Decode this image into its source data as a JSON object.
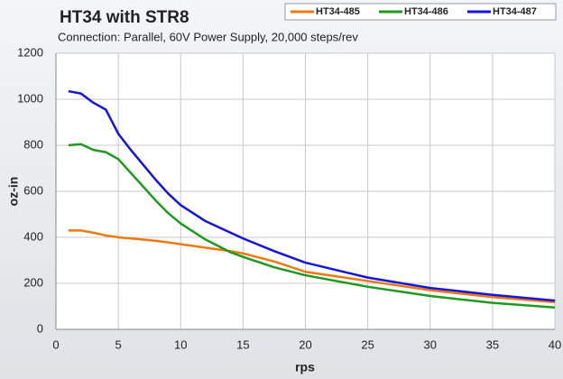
{
  "chart_data": {
    "type": "line",
    "title": "HT34 with STR8",
    "subtitle": "Connection: Parallel, 60V Power Supply, 20,000 steps/rev",
    "x_label": "rps",
    "y_label": "oz-in",
    "x": [
      1,
      2,
      3,
      4,
      5,
      6,
      7,
      8,
      9,
      10,
      12,
      14,
      15,
      17.5,
      20,
      25,
      30,
      35,
      40
    ],
    "series": [
      {
        "name": "HT34-485",
        "color": "#f07810",
        "values": [
          430,
          430,
          420,
          408,
          400,
          395,
          390,
          385,
          378,
          370,
          355,
          340,
          330,
          295,
          250,
          210,
          170,
          140,
          118
        ]
      },
      {
        "name": "HT34-486",
        "color": "#1e9a1e",
        "values": [
          800,
          805,
          780,
          770,
          740,
          680,
          620,
          560,
          505,
          460,
          390,
          335,
          315,
          270,
          235,
          185,
          145,
          115,
          95
        ]
      },
      {
        "name": "HT34-487",
        "color": "#1414e0",
        "values": [
          1035,
          1025,
          985,
          955,
          850,
          780,
          715,
          650,
          590,
          540,
          470,
          420,
          395,
          340,
          290,
          225,
          180,
          150,
          125
        ]
      }
    ],
    "xlim": [
      0,
      40
    ],
    "xticks": [
      0,
      5,
      10,
      15,
      20,
      25,
      30,
      35,
      40
    ],
    "ylim": [
      0,
      1200
    ],
    "yticks": [
      0,
      200,
      400,
      600,
      800,
      1000,
      1200
    ],
    "grid": true,
    "legend": "top-right"
  }
}
